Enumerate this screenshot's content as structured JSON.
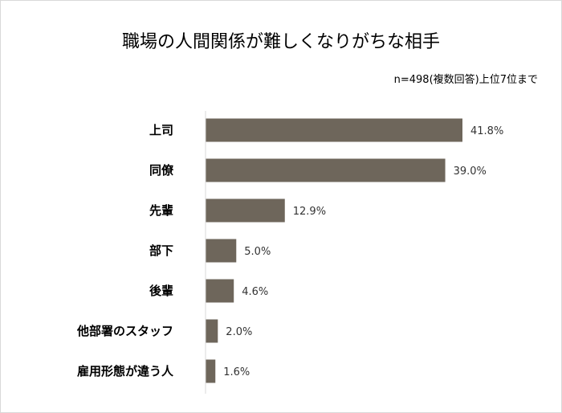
{
  "chart_data": {
    "type": "bar",
    "orientation": "horizontal",
    "title": "職場の人間関係が難しくなりがちな相手",
    "subtitle": "n=498(複数回答)上位7位まで",
    "categories": [
      "上司",
      "同僚",
      "先輩",
      "部下",
      "後輩",
      "他部署のスタッフ",
      "雇用形態が違う人"
    ],
    "values": [
      41.8,
      39.0,
      12.9,
      5.0,
      4.6,
      2.0,
      1.6
    ],
    "value_labels": [
      "41.8%",
      "39.0%",
      "12.9%",
      "5.0%",
      "4.6%",
      "2.0%",
      "1.6%"
    ],
    "xlabel": "",
    "ylabel": "",
    "xlim": [
      0,
      45
    ],
    "grid": false,
    "bar_color": "#6e665b",
    "axis_color": "#d9d9d9"
  }
}
